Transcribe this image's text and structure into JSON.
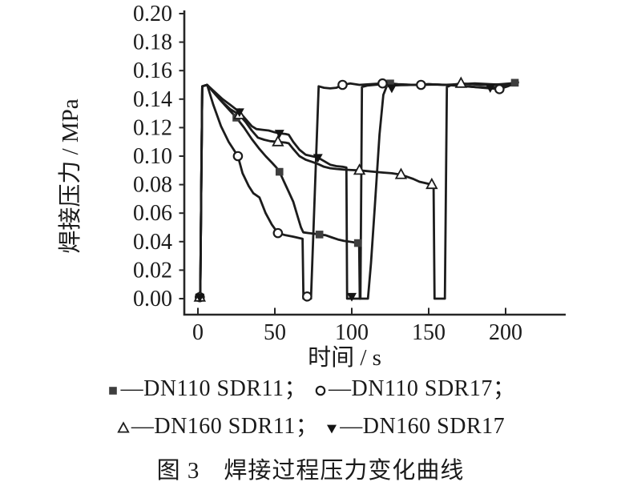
{
  "figure": {
    "caption": "图 3　焊接过程压力变化曲线"
  },
  "legend": {
    "dash": "—",
    "rows": [
      [
        {
          "marker": "filled-square",
          "label": "DN110 SDR11",
          "sep": "；"
        },
        {
          "marker": "open-circle",
          "label": "DN110 SDR17",
          "sep": "；"
        }
      ],
      [
        {
          "marker": "open-triangle-up",
          "label": "DN160 SDR11",
          "sep": "；"
        },
        {
          "marker": "filled-triangle-down",
          "label": "DN160 SDR17",
          "sep": ""
        }
      ]
    ]
  },
  "chart_data": {
    "type": "line",
    "title": "",
    "xlabel": "时间 / s",
    "ylabel": "焊接压力 / MPa",
    "xlim": [
      0,
      225
    ],
    "ylim": [
      0,
      0.2
    ],
    "x_ticks": [
      "0",
      "50",
      "100",
      "150",
      "200"
    ],
    "y_ticks": [
      "0.00",
      "0.02",
      "0.04",
      "0.06",
      "0.08",
      "0.10",
      "0.12",
      "0.14",
      "0.16",
      "0.18",
      "0.20"
    ],
    "grid": false,
    "legend_position": "below",
    "line_color": "#1c1c1c",
    "square_fill": "#3e3e3e",
    "series": [
      {
        "name": "DN110 SDR11",
        "marker": "filled-square",
        "line": [
          [
            0,
            0
          ],
          [
            1.5,
            0
          ],
          [
            2.2,
            0.08
          ],
          [
            2.8,
            0.149
          ],
          [
            6,
            0.15
          ],
          [
            10,
            0.145
          ],
          [
            14,
            0.14
          ],
          [
            19,
            0.134
          ],
          [
            25,
            0.127
          ],
          [
            30,
            0.12
          ],
          [
            35,
            0.112
          ],
          [
            40,
            0.105
          ],
          [
            44,
            0.1
          ],
          [
            48,
            0.0955
          ],
          [
            51,
            0.092
          ],
          [
            53,
            0.089
          ],
          [
            56,
            0.082
          ],
          [
            59,
            0.075
          ],
          [
            62,
            0.068
          ],
          [
            65,
            0.057
          ],
          [
            67,
            0.05
          ],
          [
            68.5,
            0.0465
          ],
          [
            72,
            0.046
          ],
          [
            76,
            0.0455
          ],
          [
            79,
            0.045
          ],
          [
            83,
            0.0445
          ],
          [
            87,
            0.043
          ],
          [
            91,
            0.0415
          ],
          [
            95,
            0.0405
          ],
          [
            100,
            0.0398
          ],
          [
            104,
            0.039
          ],
          [
            104.8,
            0.0388
          ],
          [
            105.2,
            0
          ],
          [
            110.5,
            0
          ],
          [
            112.5,
            0.025
          ],
          [
            115,
            0.065
          ],
          [
            118,
            0.115
          ],
          [
            120.5,
            0.143
          ],
          [
            122.5,
            0.1485
          ],
          [
            125,
            0.151
          ],
          [
            130,
            0.1505
          ],
          [
            140,
            0.15
          ],
          [
            150,
            0.1505
          ],
          [
            160,
            0.15
          ],
          [
            170,
            0.1505
          ],
          [
            180,
            0.151
          ],
          [
            190,
            0.1505
          ],
          [
            200,
            0.15
          ],
          [
            205,
            0.1513
          ],
          [
            208,
            0.152
          ]
        ],
        "marker_points": [
          [
            1.2,
            0.001
          ],
          [
            25,
            0.127
          ],
          [
            53,
            0.089
          ],
          [
            79,
            0.045
          ],
          [
            104,
            0.039
          ],
          [
            125,
            0.151
          ],
          [
            206,
            0.1515
          ]
        ]
      },
      {
        "name": "DN110 SDR17",
        "marker": "open-circle",
        "line": [
          [
            0,
            0
          ],
          [
            1.5,
            0
          ],
          [
            2.2,
            0.08
          ],
          [
            2.8,
            0.149
          ],
          [
            6,
            0.15
          ],
          [
            10,
            0.136
          ],
          [
            15,
            0.121
          ],
          [
            20,
            0.11
          ],
          [
            26,
            0.1
          ],
          [
            29,
            0.088
          ],
          [
            33,
            0.079
          ],
          [
            36,
            0.074
          ],
          [
            40,
            0.071
          ],
          [
            44,
            0.06
          ],
          [
            48,
            0.052
          ],
          [
            52,
            0.046
          ],
          [
            57,
            0.0445
          ],
          [
            62,
            0.0435
          ],
          [
            66,
            0.0425
          ],
          [
            68,
            0.042
          ],
          [
            68.6,
            0
          ],
          [
            73.5,
            0
          ],
          [
            78.5,
            0.149
          ],
          [
            82,
            0.148
          ],
          [
            86,
            0.1475
          ],
          [
            90,
            0.148
          ],
          [
            94,
            0.15
          ],
          [
            99,
            0.151
          ],
          [
            105,
            0.15
          ],
          [
            112,
            0.1505
          ],
          [
            120,
            0.151
          ],
          [
            127,
            0.1505
          ],
          [
            134,
            0.15
          ],
          [
            145,
            0.15
          ],
          [
            155,
            0.1502
          ],
          [
            165,
            0.15
          ],
          [
            171,
            0.1493
          ],
          [
            178,
            0.1487
          ],
          [
            185,
            0.148
          ],
          [
            190,
            0.1475
          ],
          [
            196,
            0.147
          ],
          [
            201,
            0.1488
          ],
          [
            205,
            0.1505
          ],
          [
            208,
            0.1515
          ]
        ],
        "marker_points": [
          [
            1.2,
            0.001
          ],
          [
            26,
            0.1
          ],
          [
            52,
            0.046
          ],
          [
            71,
            0.0015
          ],
          [
            94,
            0.15
          ],
          [
            120,
            0.151
          ],
          [
            145,
            0.15
          ],
          [
            196,
            0.147
          ]
        ]
      },
      {
        "name": "DN160 SDR11",
        "marker": "open-triangle-up",
        "line": [
          [
            0,
            0
          ],
          [
            1.5,
            0
          ],
          [
            2.2,
            0.08
          ],
          [
            2.8,
            0.149
          ],
          [
            6,
            0.15
          ],
          [
            11,
            0.144
          ],
          [
            16,
            0.138
          ],
          [
            21,
            0.133
          ],
          [
            27,
            0.129
          ],
          [
            31,
            0.124
          ],
          [
            35,
            0.118
          ],
          [
            39,
            0.113
          ],
          [
            43,
            0.1115
          ],
          [
            47,
            0.1105
          ],
          [
            52,
            0.11
          ],
          [
            57,
            0.1095
          ],
          [
            59,
            0.109
          ],
          [
            62,
            0.105
          ],
          [
            66,
            0.1
          ],
          [
            70,
            0.0975
          ],
          [
            74,
            0.096
          ],
          [
            78,
            0.0945
          ],
          [
            82,
            0.0925
          ],
          [
            86,
            0.0915
          ],
          [
            90,
            0.091
          ],
          [
            95,
            0.0905
          ],
          [
            100,
            0.0902
          ],
          [
            105,
            0.09
          ],
          [
            110,
            0.0895
          ],
          [
            115,
            0.089
          ],
          [
            120,
            0.0885
          ],
          [
            126,
            0.088
          ],
          [
            132,
            0.087
          ],
          [
            136,
            0.0855
          ],
          [
            140,
            0.084
          ],
          [
            144,
            0.082
          ],
          [
            148,
            0.081
          ],
          [
            152,
            0.08
          ],
          [
            153.2,
            0.0795
          ],
          [
            153.8,
            0
          ],
          [
            160.5,
            0
          ],
          [
            161.8,
            0.1485
          ],
          [
            165,
            0.15
          ],
          [
            171,
            0.151
          ],
          [
            177,
            0.1505
          ],
          [
            184,
            0.15
          ],
          [
            190,
            0.15
          ],
          [
            197,
            0.1505
          ],
          [
            203,
            0.151
          ],
          [
            207,
            0.1515
          ]
        ],
        "marker_points": [
          [
            1.2,
            0.001
          ],
          [
            27,
            0.129
          ],
          [
            52,
            0.11
          ],
          [
            105,
            0.09
          ],
          [
            132,
            0.087
          ],
          [
            152,
            0.08
          ],
          [
            171,
            0.151
          ]
        ]
      },
      {
        "name": "DN160 SDR17",
        "marker": "filled-triangle-down",
        "line": [
          [
            0,
            0
          ],
          [
            1.5,
            0
          ],
          [
            2.2,
            0.08
          ],
          [
            2.8,
            0.149
          ],
          [
            6,
            0.15
          ],
          [
            11,
            0.145
          ],
          [
            16,
            0.14
          ],
          [
            21,
            0.136
          ],
          [
            27,
            0.131
          ],
          [
            31,
            0.126
          ],
          [
            35,
            0.121
          ],
          [
            38,
            0.119
          ],
          [
            42,
            0.1185
          ],
          [
            46,
            0.118
          ],
          [
            49,
            0.117
          ],
          [
            53,
            0.116
          ],
          [
            57,
            0.1155
          ],
          [
            59,
            0.115
          ],
          [
            62,
            0.11
          ],
          [
            66,
            0.1045
          ],
          [
            70,
            0.101
          ],
          [
            74,
            0.1
          ],
          [
            78,
            0.099
          ],
          [
            82,
            0.0965
          ],
          [
            86,
            0.094
          ],
          [
            90,
            0.093
          ],
          [
            94,
            0.0925
          ],
          [
            96.5,
            0.092
          ],
          [
            97,
            0
          ],
          [
            105.6,
            0
          ],
          [
            106.6,
            0.1485
          ],
          [
            110,
            0.1495
          ],
          [
            115,
            0.15
          ],
          [
            120,
            0.1505
          ],
          [
            126,
            0.1495
          ],
          [
            132,
            0.1498
          ],
          [
            140,
            0.15
          ],
          [
            150,
            0.1505
          ],
          [
            160,
            0.15
          ],
          [
            171,
            0.1492
          ],
          [
            180,
            0.1485
          ],
          [
            190,
            0.148
          ],
          [
            196,
            0.149
          ],
          [
            202,
            0.15
          ],
          [
            207,
            0.1513
          ]
        ],
        "marker_points": [
          [
            1.2,
            0.001
          ],
          [
            27,
            0.131
          ],
          [
            53,
            0.116
          ],
          [
            78,
            0.099
          ],
          [
            100,
            0.0015
          ],
          [
            126,
            0.1478
          ],
          [
            190,
            0.148
          ]
        ]
      }
    ]
  }
}
